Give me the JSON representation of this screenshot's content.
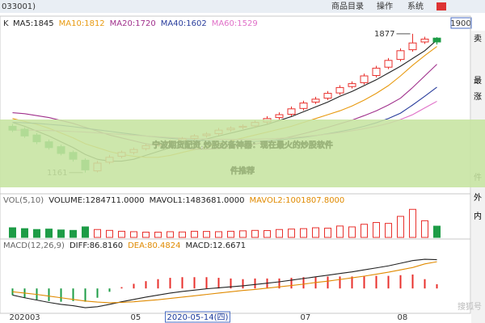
{
  "window": {
    "code_fragment": "033001)",
    "menu": [
      "商品目录",
      "操作",
      "系统"
    ],
    "price_box": "1900"
  },
  "sidebar": [
    "卖",
    "最",
    "涨",
    "件",
    "外",
    "内"
  ],
  "banner": {
    "line1": "宁波期货配资,炒股必备神器：现在最火的炒股软件",
    "line2": "件推荐"
  },
  "watermark": "搜狐号",
  "chart_data": {
    "type": "candlestick",
    "period_label": "K",
    "categories": [
      "202003",
      null,
      null,
      null,
      null,
      null,
      null,
      null,
      null,
      null,
      "05",
      null,
      null,
      "2020-05-14(四)",
      null,
      null,
      null,
      null,
      null,
      null,
      null,
      null,
      null,
      null,
      "07",
      null,
      null,
      null,
      null,
      null,
      null,
      null,
      "08",
      null,
      null,
      null
    ],
    "candles": {
      "open": [
        1400,
        1385,
        1355,
        1320,
        1295,
        1265,
        1225,
        1170,
        1215,
        1245,
        1265,
        1285,
        1305,
        1315,
        1322,
        1338,
        1352,
        1362,
        1382,
        1395,
        1402,
        1422,
        1445,
        1462,
        1492,
        1525,
        1545,
        1572,
        1605,
        1625,
        1662,
        1705,
        1745,
        1795,
        1835,
        1855
      ],
      "high": [
        1412,
        1395,
        1365,
        1332,
        1305,
        1275,
        1235,
        1222,
        1252,
        1275,
        1290,
        1310,
        1320,
        1330,
        1345,
        1360,
        1370,
        1392,
        1400,
        1410,
        1430,
        1452,
        1472,
        1502,
        1532,
        1552,
        1582,
        1612,
        1632,
        1672,
        1712,
        1752,
        1802,
        1877,
        1862,
        1860
      ],
      "low": [
        1370,
        1340,
        1308,
        1280,
        1250,
        1218,
        1161,
        1162,
        1205,
        1235,
        1255,
        1275,
        1295,
        1305,
        1312,
        1328,
        1342,
        1352,
        1372,
        1385,
        1392,
        1412,
        1435,
        1452,
        1482,
        1515,
        1535,
        1562,
        1595,
        1615,
        1652,
        1695,
        1735,
        1785,
        1825,
        1822
      ],
      "close": [
        1380,
        1350,
        1320,
        1290,
        1260,
        1230,
        1175,
        1210,
        1240,
        1265,
        1280,
        1300,
        1310,
        1320,
        1335,
        1350,
        1360,
        1380,
        1390,
        1400,
        1420,
        1440,
        1460,
        1490,
        1520,
        1540,
        1570,
        1600,
        1620,
        1660,
        1700,
        1740,
        1790,
        1830,
        1850,
        1835
      ],
      "up_color": "#e8302c",
      "down_color": "#1d9c46"
    },
    "ylim": [
      1060,
      1960
    ],
    "annotations": [
      {
        "candle": 33,
        "field": "high"
      },
      {
        "candle": 6,
        "field": "low"
      }
    ],
    "series": [
      {
        "name": "MA5",
        "label": "MA5:1845",
        "color": "#222222",
        "values": [
          1420,
          1400,
          1375,
          1350,
          1320,
          1290,
          1255,
          1230,
          1220,
          1220,
          1230,
          1250,
          1270,
          1290,
          1305,
          1320,
          1335,
          1350,
          1365,
          1380,
          1395,
          1410,
          1430,
          1450,
          1475,
          1500,
          1525,
          1555,
          1580,
          1610,
          1640,
          1675,
          1710,
          1750,
          1790,
          1845
        ]
      },
      {
        "name": "MA10",
        "label": "MA10:1812",
        "color": "#e89a10",
        "values": [
          1440,
          1425,
          1410,
          1390,
          1365,
          1340,
          1310,
          1290,
          1270,
          1255,
          1245,
          1240,
          1240,
          1250,
          1265,
          1280,
          1295,
          1310,
          1325,
          1340,
          1355,
          1370,
          1385,
          1400,
          1420,
          1440,
          1460,
          1480,
          1505,
          1535,
          1570,
          1610,
          1660,
          1715,
          1765,
          1812
        ]
      },
      {
        "name": "MA20",
        "label": "MA20:1720",
        "color": "#a0308c",
        "values": [
          1470,
          1465,
          1455,
          1445,
          1430,
          1415,
          1395,
          1375,
          1355,
          1340,
          1325,
          1310,
          1300,
          1290,
          1285,
          1282,
          1282,
          1285,
          1290,
          1298,
          1308,
          1320,
          1333,
          1347,
          1362,
          1378,
          1395,
          1413,
          1432,
          1455,
          1480,
          1510,
          1545,
          1600,
          1660,
          1720
        ]
      },
      {
        "name": "MA40",
        "label": "MA40:1602",
        "color": "#283c9c",
        "values": [
          1420,
          1418,
          1415,
          1410,
          1405,
          1398,
          1390,
          1382,
          1374,
          1366,
          1358,
          1350,
          1344,
          1338,
          1333,
          1328,
          1325,
          1322,
          1320,
          1320,
          1322,
          1325,
          1330,
          1336,
          1343,
          1352,
          1362,
          1373,
          1385,
          1400,
          1418,
          1440,
          1468,
          1510,
          1555,
          1602
        ]
      },
      {
        "name": "MA60",
        "label": "MA60:1529",
        "color": "#e070c8",
        "values": [
          1380,
          1380,
          1379,
          1378,
          1376,
          1373,
          1370,
          1366,
          1362,
          1358,
          1354,
          1350,
          1346,
          1342,
          1339,
          1336,
          1334,
          1333,
          1332,
          1332,
          1333,
          1335,
          1338,
          1342,
          1347,
          1353,
          1360,
          1368,
          1377,
          1388,
          1400,
          1415,
          1435,
          1460,
          1495,
          1529
        ]
      }
    ],
    "volume": {
      "labels": [
        {
          "text": "VOL(5,10)",
          "color": "#666666"
        },
        {
          "text": "VOLUME:1284711.0000",
          "color": "#222222"
        },
        {
          "text": "MAVOL1:1483681.0000",
          "color": "#222222"
        },
        {
          "text": "MAVOL2:1001807.8000",
          "color": "#e08a00"
        }
      ],
      "values": [
        1100000,
        1000000,
        900000,
        950000,
        850000,
        800000,
        1200000,
        900000,
        800000,
        700000,
        650000,
        600000,
        600000,
        650000,
        620000,
        700000,
        680000,
        650000,
        700000,
        750000,
        800000,
        780000,
        900000,
        950000,
        1000000,
        1100000,
        1050000,
        1300000,
        1200000,
        1500000,
        1700000,
        1600000,
        2400000,
        3200000,
        1900000,
        1284711
      ],
      "ylim": [
        0,
        3500000
      ]
    },
    "macd": {
      "labels": [
        {
          "text": "MACD(12,26,9)",
          "color": "#666666"
        },
        {
          "text": "DIFF:86.8160",
          "color": "#222222"
        },
        {
          "text": "DEA:80.4824",
          "color": "#e08a00"
        },
        {
          "text": "MACD:12.6671",
          "color": "#222222"
        }
      ],
      "diff": [
        -20,
        -28,
        -35,
        -42,
        -48,
        -52,
        -58,
        -55,
        -48,
        -40,
        -33,
        -26,
        -20,
        -14,
        -9,
        -5,
        -1,
        2,
        5,
        8,
        12,
        16,
        20,
        25,
        30,
        35,
        40,
        45,
        50,
        56,
        62,
        68,
        76,
        84,
        88,
        86.816
      ],
      "dea": [
        -10,
        -14,
        -18,
        -23,
        -28,
        -33,
        -38,
        -41,
        -43,
        -42,
        -40,
        -37,
        -34,
        -30,
        -26,
        -22,
        -18,
        -14,
        -10,
        -6,
        -3,
        1,
        5,
        9,
        13,
        18,
        22,
        27,
        32,
        37,
        43,
        49,
        56,
        63,
        74,
        80.4824
      ],
      "hist": [
        -20,
        -28,
        -34,
        -38,
        -40,
        -38,
        -40,
        -28,
        -10,
        4,
        14,
        22,
        28,
        32,
        34,
        34,
        34,
        32,
        30,
        28,
        30,
        30,
        30,
        32,
        34,
        34,
        36,
        36,
        36,
        38,
        38,
        38,
        40,
        42,
        28,
        12.6671
      ],
      "diff_color": "#222222",
      "dea_color": "#e08a00",
      "ylim": [
        -70,
        110
      ]
    }
  }
}
